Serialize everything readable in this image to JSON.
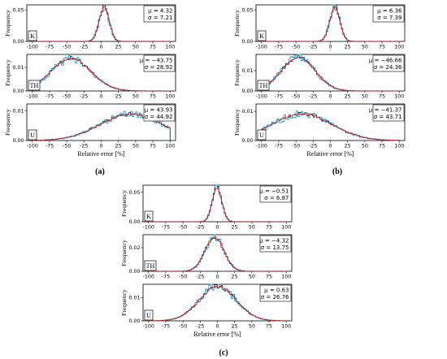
{
  "figure": {
    "panel_labels": [
      "(a)",
      "(b)",
      "(c)"
    ]
  },
  "chart_data": [
    {
      "panel": "(a)",
      "type": "histogram",
      "xlabel": "Relative error [%]",
      "x_ticks": [
        -100,
        -75,
        -50,
        -25,
        0,
        25,
        50,
        75,
        100
      ],
      "xlim": [
        -108,
        108
      ],
      "legend_placement": "top-right",
      "series_colors": {
        "histogram": "#1f9bd7",
        "gaussian_fit": "#e0312d",
        "outline": "#000000"
      },
      "subplots": [
        {
          "label": "K",
          "ylabel": "Frequency",
          "mu": 4.32,
          "sigma": 7.21,
          "mu_text": "μ = 4.32",
          "sigma_text": "σ = 7.21",
          "ylim": [
            0,
            0.058
          ],
          "y_ticks": [
            0,
            0.05
          ],
          "y_tick_labels": [
            "0.00",
            "0.05"
          ]
        },
        {
          "label": "TH",
          "ylabel": "Frequency",
          "mu": -43.75,
          "sigma": 28.92,
          "mu_text": "μ = −43.75",
          "sigma_text": "σ = 28.92",
          "ylim": [
            0,
            0.0155
          ],
          "y_ticks": [
            0,
            0.01
          ],
          "y_tick_labels": [
            "0.00",
            "0.01"
          ]
        },
        {
          "label": "U",
          "ylabel": "Frequency",
          "mu": 43.93,
          "sigma": 44.92,
          "mu_text": "μ = 43.93",
          "sigma_text": "σ = 44.92",
          "ylim": [
            0,
            0.0122
          ],
          "y_ticks": [
            0,
            0.01
          ],
          "y_tick_labels": [
            "0.00",
            "0.01"
          ]
        }
      ]
    },
    {
      "panel": "(b)",
      "type": "histogram",
      "xlabel": "Relative error [%]",
      "x_ticks": [
        -100,
        -75,
        -50,
        -25,
        0,
        25,
        50,
        75,
        100
      ],
      "xlim": [
        -108,
        108
      ],
      "legend_placement": "top-right",
      "series_colors": {
        "histogram": "#1f9bd7",
        "gaussian_fit": "#e0312d",
        "outline": "#000000"
      },
      "subplots": [
        {
          "label": "K",
          "ylabel": "Frequency",
          "mu": 6.36,
          "sigma": 7.39,
          "mu_text": "μ = 6.36",
          "sigma_text": "σ = 7.39",
          "ylim": [
            0,
            0.058
          ],
          "y_ticks": [
            0,
            0.05
          ],
          "y_tick_labels": [
            "0.00",
            "0.05"
          ]
        },
        {
          "label": "TH",
          "ylabel": "Frequency",
          "mu": -46.66,
          "sigma": 24.36,
          "mu_text": "μ = −46.66",
          "sigma_text": "σ = 24.36",
          "ylim": [
            0,
            0.018
          ],
          "y_ticks": [
            0,
            0.01
          ],
          "y_tick_labels": [
            "0.00",
            "0.01"
          ]
        },
        {
          "label": "U",
          "ylabel": "Frequency",
          "mu": -41.37,
          "sigma": 43.71,
          "mu_text": "μ = −41.37",
          "sigma_text": "σ = 43.71",
          "ylim": [
            0,
            0.0125
          ],
          "y_ticks": [
            0,
            0.01
          ],
          "y_tick_labels": [
            "0.00",
            "0.01"
          ]
        }
      ]
    },
    {
      "panel": "(c)",
      "type": "histogram",
      "xlabel": "Relative error [%]",
      "x_ticks": [
        -100,
        -75,
        -50,
        -25,
        0,
        25,
        50,
        75,
        100
      ],
      "xlim": [
        -108,
        108
      ],
      "legend_placement": "top-right",
      "series_colors": {
        "histogram": "#1f9bd7",
        "gaussian_fit": "#e0312d",
        "outline": "#000000"
      },
      "subplots": [
        {
          "label": "K",
          "ylabel": "Frequency",
          "mu": -0.51,
          "sigma": 6.87,
          "mu_text": "μ = −0.51",
          "sigma_text": "σ = 6.87",
          "ylim": [
            0,
            0.062
          ],
          "y_ticks": [
            0,
            0.05
          ],
          "y_tick_labels": [
            "0.00",
            "0.05"
          ]
        },
        {
          "label": "TH",
          "ylabel": "Frequency",
          "mu": -4.32,
          "sigma": 13.75,
          "mu_text": "μ = −4.32",
          "sigma_text": "σ = 13.75",
          "ylim": [
            0,
            0.031
          ],
          "y_ticks": [
            0,
            0.02
          ],
          "y_tick_labels": [
            "0.00",
            "0.02"
          ]
        },
        {
          "label": "U",
          "ylabel": "Frequency",
          "mu": 0.63,
          "sigma": 26.76,
          "mu_text": "μ = 0.63",
          "sigma_text": "σ = 26.76",
          "ylim": [
            0,
            0.0158
          ],
          "y_ticks": [
            0,
            0.01
          ],
          "y_tick_labels": [
            "0.00",
            "0.01"
          ]
        }
      ]
    }
  ]
}
